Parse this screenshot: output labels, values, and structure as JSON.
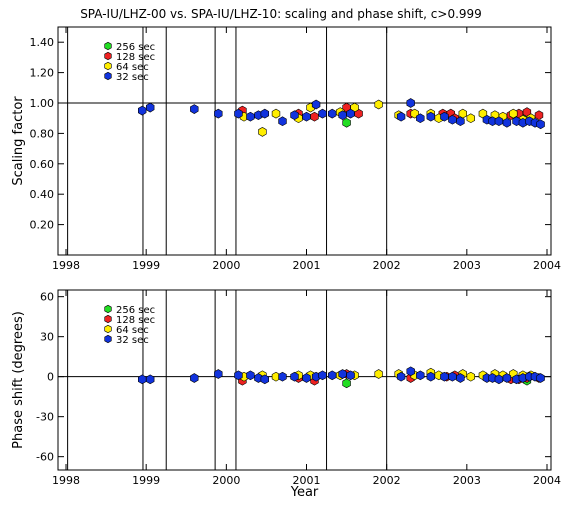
{
  "title": "SPA-IU/LHZ-00 vs. SPA-IU/LHZ-10: scaling and phase shift, c>0.999",
  "legend": [
    {
      "label": "256 sec",
      "color": "#22dd22"
    },
    {
      "label": "128 sec",
      "color": "#ee2222"
    },
    {
      "label": "64 sec",
      "color": "#ffee00"
    },
    {
      "label": "32 sec",
      "color": "#1133dd"
    }
  ],
  "chart_data": [
    {
      "type": "scatter",
      "ylabel": "Scaling factor",
      "xlabel": "",
      "xlim": [
        1997.9,
        2004.05
      ],
      "ylim": [
        0.0,
        1.5
      ],
      "xticks": [
        "1998",
        "1999",
        "2000",
        "2001",
        "2002",
        "2003",
        "2004"
      ],
      "yticks": [
        "0.20",
        "0.40",
        "0.60",
        "0.80",
        "1.00",
        "1.20",
        "1.40"
      ],
      "reference_line": 1.0,
      "vertical_lines": [
        1998.02,
        1998.96,
        1999.25,
        1999.86,
        2000.12,
        2001.25,
        2002.0
      ],
      "series": [
        {
          "name": "256 sec",
          "points": [
            [
              2001.5,
              0.87
            ],
            [
              2003.75,
              0.91
            ]
          ]
        },
        {
          "name": "128 sec",
          "points": [
            [
              2000.2,
              0.95
            ],
            [
              2000.9,
              0.93
            ],
            [
              2001.1,
              0.91
            ],
            [
              2001.5,
              0.97
            ],
            [
              2001.65,
              0.93
            ],
            [
              2002.3,
              0.93
            ],
            [
              2002.7,
              0.93
            ],
            [
              2002.8,
              0.93
            ],
            [
              2002.85,
              0.9
            ],
            [
              2003.55,
              0.92
            ],
            [
              2003.65,
              0.93
            ],
            [
              2003.75,
              0.94
            ],
            [
              2003.9,
              0.92
            ]
          ]
        },
        {
          "name": "64 sec",
          "points": [
            [
              2000.22,
              0.91
            ],
            [
              2000.45,
              0.81
            ],
            [
              2000.62,
              0.93
            ],
            [
              2000.9,
              0.9
            ],
            [
              2001.05,
              0.97
            ],
            [
              2001.42,
              0.94
            ],
            [
              2001.6,
              0.97
            ],
            [
              2001.9,
              0.99
            ],
            [
              2002.15,
              0.92
            ],
            [
              2002.35,
              0.93
            ],
            [
              2002.55,
              0.93
            ],
            [
              2002.65,
              0.9
            ],
            [
              2002.95,
              0.93
            ],
            [
              2003.05,
              0.9
            ],
            [
              2003.2,
              0.93
            ],
            [
              2003.35,
              0.92
            ],
            [
              2003.45,
              0.91
            ],
            [
              2003.58,
              0.93
            ],
            [
              2003.7,
              0.89
            ],
            [
              2003.8,
              0.9
            ]
          ]
        },
        {
          "name": "32 sec",
          "points": [
            [
              1998.95,
              0.95
            ],
            [
              1999.05,
              0.97
            ],
            [
              1999.6,
              0.96
            ],
            [
              1999.9,
              0.93
            ],
            [
              2000.15,
              0.93
            ],
            [
              2000.3,
              0.91
            ],
            [
              2000.4,
              0.92
            ],
            [
              2000.48,
              0.93
            ],
            [
              2000.7,
              0.88
            ],
            [
              2000.85,
              0.92
            ],
            [
              2001.0,
              0.91
            ],
            [
              2001.12,
              0.99
            ],
            [
              2001.2,
              0.93
            ],
            [
              2001.32,
              0.93
            ],
            [
              2001.45,
              0.92
            ],
            [
              2001.55,
              0.93
            ],
            [
              2002.18,
              0.91
            ],
            [
              2002.3,
              1.0
            ],
            [
              2002.42,
              0.9
            ],
            [
              2002.55,
              0.91
            ],
            [
              2002.72,
              0.91
            ],
            [
              2002.82,
              0.89
            ],
            [
              2002.92,
              0.88
            ],
            [
              2003.25,
              0.89
            ],
            [
              2003.32,
              0.88
            ],
            [
              2003.4,
              0.88
            ],
            [
              2003.5,
              0.87
            ],
            [
              2003.62,
              0.88
            ],
            [
              2003.7,
              0.87
            ],
            [
              2003.78,
              0.88
            ],
            [
              2003.85,
              0.87
            ],
            [
              2003.92,
              0.86
            ]
          ]
        }
      ]
    },
    {
      "type": "scatter",
      "ylabel": "Phase shift (degrees)",
      "xlabel": "Year",
      "xlim": [
        1997.9,
        2004.05
      ],
      "ylim": [
        -70,
        65
      ],
      "xticks": [
        "1998",
        "1999",
        "2000",
        "2001",
        "2002",
        "2003",
        "2004"
      ],
      "yticks": [
        "-60",
        "-30",
        "0",
        "30",
        "60"
      ],
      "reference_line": 0,
      "vertical_lines": [
        1998.02,
        1998.96,
        1999.25,
        1999.86,
        2000.12,
        2001.25,
        2002.0
      ],
      "series": [
        {
          "name": "256 sec",
          "points": [
            [
              2001.5,
              -5
            ],
            [
              2003.75,
              -3
            ]
          ]
        },
        {
          "name": "128 sec",
          "points": [
            [
              2000.2,
              -3
            ],
            [
              2000.9,
              -1
            ],
            [
              2001.1,
              -3
            ],
            [
              2001.5,
              2
            ],
            [
              2002.3,
              -1
            ],
            [
              2002.75,
              0
            ],
            [
              2002.85,
              1
            ],
            [
              2003.55,
              -2
            ],
            [
              2003.65,
              -2
            ],
            [
              2003.75,
              -1
            ],
            [
              2003.9,
              -1
            ]
          ]
        },
        {
          "name": "64 sec",
          "points": [
            [
              2000.22,
              0
            ],
            [
              2000.45,
              1
            ],
            [
              2000.62,
              0
            ],
            [
              2000.9,
              1
            ],
            [
              2001.05,
              1
            ],
            [
              2001.42,
              1
            ],
            [
              2001.6,
              1
            ],
            [
              2001.9,
              2
            ],
            [
              2002.15,
              2
            ],
            [
              2002.35,
              1
            ],
            [
              2002.55,
              3
            ],
            [
              2002.65,
              1
            ],
            [
              2002.95,
              2
            ],
            [
              2003.05,
              0
            ],
            [
              2003.2,
              1
            ],
            [
              2003.35,
              2
            ],
            [
              2003.45,
              1
            ],
            [
              2003.58,
              2
            ],
            [
              2003.7,
              1
            ],
            [
              2003.8,
              1
            ]
          ]
        },
        {
          "name": "32 sec",
          "points": [
            [
              1998.95,
              -2
            ],
            [
              1999.05,
              -2
            ],
            [
              1999.6,
              -1
            ],
            [
              1999.9,
              2
            ],
            [
              2000.15,
              1
            ],
            [
              2000.3,
              1
            ],
            [
              2000.4,
              -1
            ],
            [
              2000.48,
              -2
            ],
            [
              2000.7,
              0
            ],
            [
              2000.85,
              0
            ],
            [
              2001.0,
              -1
            ],
            [
              2001.12,
              0
            ],
            [
              2001.2,
              1
            ],
            [
              2001.32,
              1
            ],
            [
              2001.45,
              2
            ],
            [
              2001.55,
              1
            ],
            [
              2002.18,
              0
            ],
            [
              2002.3,
              4
            ],
            [
              2002.42,
              1
            ],
            [
              2002.55,
              0
            ],
            [
              2002.72,
              0
            ],
            [
              2002.82,
              0
            ],
            [
              2002.92,
              -1
            ],
            [
              2003.25,
              -1
            ],
            [
              2003.32,
              -1
            ],
            [
              2003.4,
              -2
            ],
            [
              2003.5,
              -1
            ],
            [
              2003.62,
              -2
            ],
            [
              2003.7,
              -1
            ],
            [
              2003.78,
              0
            ],
            [
              2003.85,
              0
            ],
            [
              2003.92,
              -1
            ]
          ]
        }
      ]
    }
  ]
}
